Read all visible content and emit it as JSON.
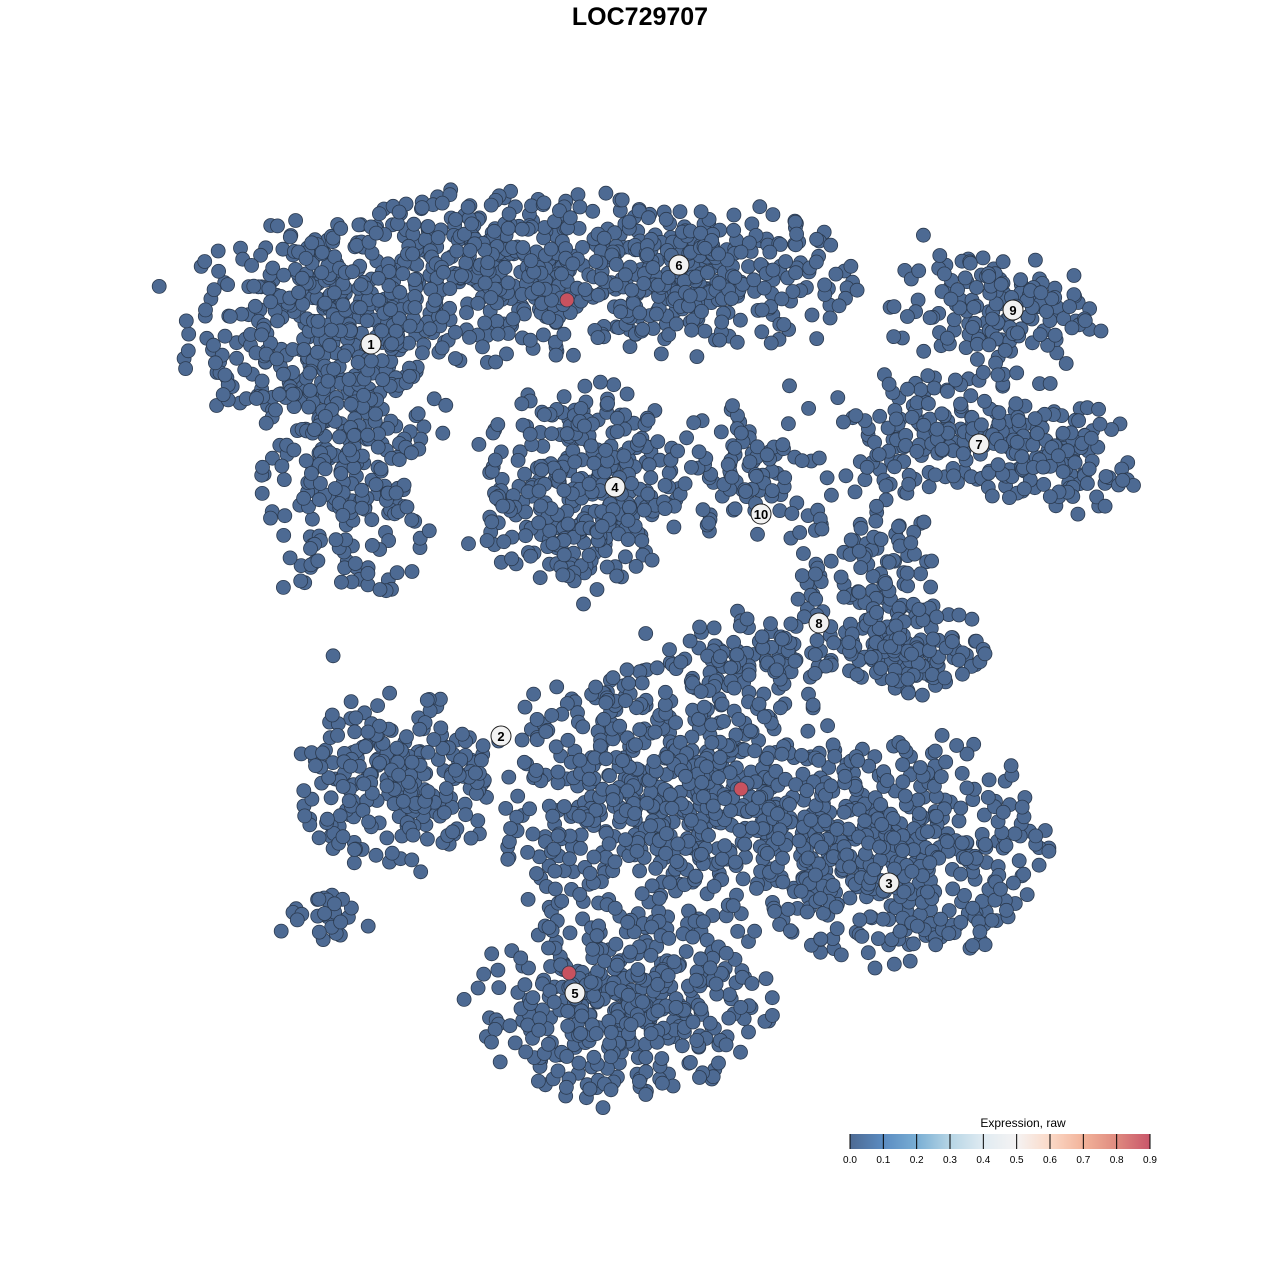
{
  "chart_data": {
    "type": "scatter",
    "title": "LOC729707",
    "xlabel": "",
    "ylabel": "",
    "axes_visible": false,
    "grid": false,
    "color_low": "#4d6a93",
    "color_high": "#c8525f",
    "point_outline": "#2b3a4f",
    "background_value": 0.0,
    "cluster_regions": [
      {
        "cluster": "1",
        "center": [
          -32,
          31
        ],
        "spread": [
          11,
          9
        ],
        "n": 350
      },
      {
        "cluster": "1",
        "center": [
          -29,
          17
        ],
        "spread": [
          7,
          11
        ],
        "n": 260
      },
      {
        "cluster": "6",
        "center": [
          -12,
          37
        ],
        "spread": [
          17,
          7
        ],
        "n": 500
      },
      {
        "cluster": "6",
        "center": [
          8,
          36
        ],
        "spread": [
          11,
          6
        ],
        "n": 250
      },
      {
        "cluster": "4",
        "center": [
          -6,
          15
        ],
        "spread": [
          8,
          8.5
        ],
        "n": 350
      },
      {
        "cluster": "10",
        "center": [
          11,
          17
        ],
        "spread": [
          6,
          6
        ],
        "n": 90
      },
      {
        "cluster": "7",
        "center": [
          32,
          21
        ],
        "spread": [
          12,
          5
        ],
        "n": 200
      },
      {
        "cluster": "7",
        "center": [
          42,
          17
        ],
        "spread": [
          6,
          4
        ],
        "n": 80
      },
      {
        "cluster": "9",
        "center": [
          35,
          33
        ],
        "spread": [
          8,
          5
        ],
        "n": 150
      },
      {
        "cluster": "8",
        "center": [
          23,
          5
        ],
        "spread": [
          6,
          9
        ],
        "n": 150
      },
      {
        "cluster": "8",
        "center": [
          28,
          -1
        ],
        "spread": [
          6,
          3.5
        ],
        "n": 100
      },
      {
        "cluster": "8",
        "center": [
          12,
          -1
        ],
        "spread": [
          7,
          3
        ],
        "n": 80
      },
      {
        "cluster": "2",
        "center": [
          -24,
          -14
        ],
        "spread": [
          8,
          7
        ],
        "n": 250
      },
      {
        "cluster": "2",
        "center": [
          -31,
          -28
        ],
        "spread": [
          4,
          2
        ],
        "n": 30
      },
      {
        "cluster": "central",
        "center": [
          3,
          -16
        ],
        "spread": [
          14,
          12
        ],
        "n": 700
      },
      {
        "cluster": "3",
        "center": [
          26,
          -21
        ],
        "spread": [
          12,
          9
        ],
        "n": 450
      },
      {
        "cluster": "5",
        "center": [
          -2,
          -37
        ],
        "spread": [
          12,
          7
        ],
        "n": 400
      }
    ],
    "highlighted_points": [
      {
        "x": -7.3,
        "y": 34.0,
        "value": 0.9
      },
      {
        "x": 10.1,
        "y": -14.9,
        "value": 0.9
      },
      {
        "x": -7.1,
        "y": -33.3,
        "value": 0.9
      }
    ],
    "cluster_labels": [
      {
        "label": "1",
        "x": -26.9,
        "y": 29.6
      },
      {
        "label": "2",
        "x": -13.9,
        "y": -9.6
      },
      {
        "label": "3",
        "x": 24.9,
        "y": -24.3
      },
      {
        "label": "4",
        "x": -2.5,
        "y": 15.3
      },
      {
        "label": "5",
        "x": -6.5,
        "y": -35.3
      },
      {
        "label": "6",
        "x": 3.9,
        "y": 37.5
      },
      {
        "label": "7",
        "x": 33.9,
        "y": 19.6
      },
      {
        "label": "8",
        "x": 17.9,
        "y": 1.7
      },
      {
        "label": "9",
        "x": 37.3,
        "y": 33.0
      },
      {
        "label": "10",
        "x": 12.1,
        "y": 12.6
      }
    ],
    "legend": {
      "title": "Expression, raw",
      "position": "bottom-right",
      "ticks": [
        "0.0",
        "0.1",
        "0.2",
        "0.3",
        "0.4",
        "0.5",
        "0.6",
        "0.7",
        "0.8",
        "0.9"
      ],
      "stops": [
        "#4d6a93",
        "#5b8cc2",
        "#79aed4",
        "#b6d5e5",
        "#e0ebf2",
        "#f5f3f3",
        "#fbd9c7",
        "#f2b39a",
        "#df8a7f",
        "#c9566a"
      ]
    }
  }
}
